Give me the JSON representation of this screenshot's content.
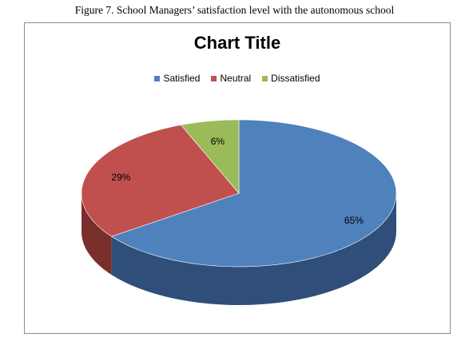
{
  "figure_caption": "Figure 7. School Managers’ satisfaction level with the autonomous school",
  "chart_data": {
    "type": "pie",
    "title": "Chart Title",
    "legend_position": "top",
    "categories": [
      "Satisfied",
      "Neutral",
      "Dissatisfied"
    ],
    "values": [
      65,
      29,
      6
    ],
    "labels": [
      "65%",
      "29%",
      "6%"
    ],
    "colors": [
      "#4f81bd",
      "#c0504d",
      "#9bbb59"
    ],
    "side_colors": [
      "#2f4f7a",
      "#7a2e2c",
      "#5e7633"
    ]
  }
}
